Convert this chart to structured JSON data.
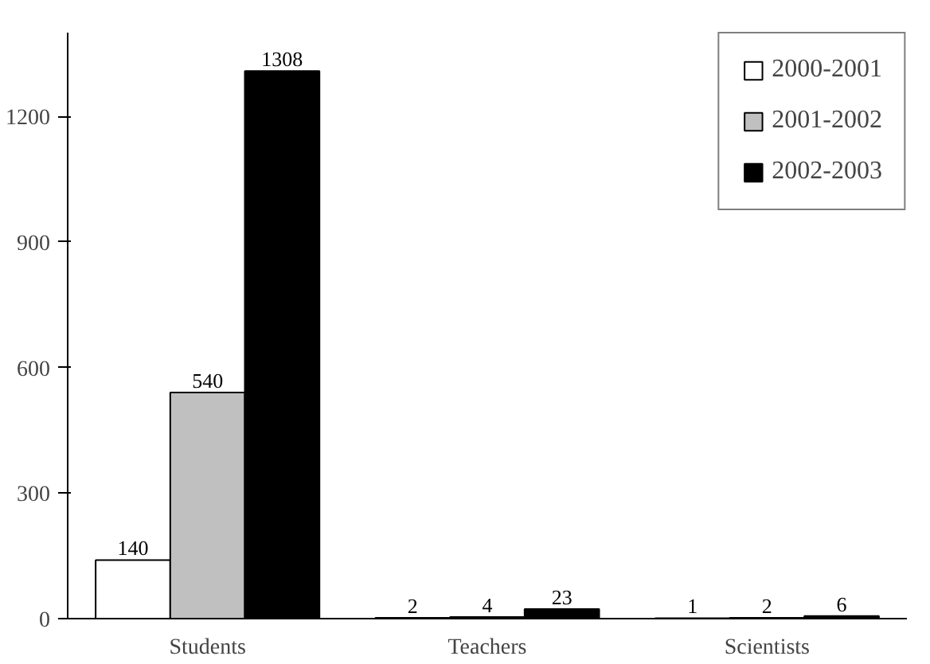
{
  "chart_data": {
    "type": "bar",
    "categories": [
      "Students",
      "Teachers",
      "Scientists"
    ],
    "series": [
      {
        "name": "2000-2001",
        "color": "#ffffff",
        "values": [
          140,
          2,
          1
        ]
      },
      {
        "name": "2001-2002",
        "color": "#c0c0c0",
        "values": [
          540,
          4,
          2
        ]
      },
      {
        "name": "2002-2003",
        "color": "#000000",
        "values": [
          1308,
          23,
          6
        ]
      }
    ],
    "ylim": [
      0,
      1400
    ],
    "yticks": [
      0,
      300,
      600,
      900,
      1200
    ],
    "grid": false,
    "legend": "top right",
    "data_labels": true
  }
}
